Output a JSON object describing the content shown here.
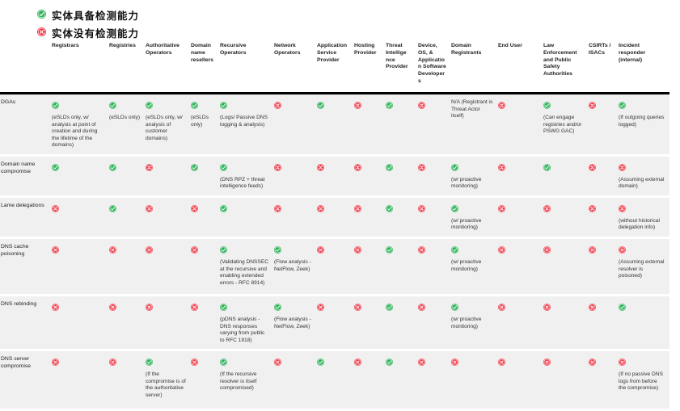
{
  "colors": {
    "check": "#2bb256",
    "cross": "#ee3342",
    "row_band": "#f0f0f1",
    "header_rule": "#000000"
  },
  "legend": {
    "items": [
      {
        "icon": "check-circle-icon",
        "label": "实体具备检测能力"
      },
      {
        "icon": "cross-circle-icon",
        "label": "实体没有检测能力"
      }
    ]
  },
  "table": {
    "columns": [
      "",
      "Registrars",
      "Registries",
      "Authoritative Operators",
      "Domain name resellers",
      "Recursive Operators",
      "Network Operators",
      "Application Service Provider",
      "Hosting Provider",
      "Threat Intellige nce Provider",
      "Device, OS, & Application Software Developers",
      "Domain Registrants",
      "End User",
      "Law Enforcement and Public Safety Authorities",
      "CSIRTs / ISACs",
      "Incident responder (internal)"
    ],
    "rows": [
      {
        "label": "DGAs",
        "cells": [
          {
            "state": "check",
            "note": "(eSLDs only, w/ analysis at point of creation and during the lifetime of the domains)"
          },
          {
            "state": "check",
            "note": "(eSLDs only)"
          },
          {
            "state": "check",
            "note": "(eSLDs only, w/ analysis of customer domains)"
          },
          {
            "state": "check",
            "note": "(eSLDs only)"
          },
          {
            "state": "check",
            "note": "(Logs/ Passive DNS logging & analysis)"
          },
          {
            "state": "cross",
            "note": ""
          },
          {
            "state": "check",
            "note": ""
          },
          {
            "state": "cross",
            "note": ""
          },
          {
            "state": "check",
            "note": ""
          },
          {
            "state": "cross",
            "note": ""
          },
          {
            "state": "none",
            "note": "N/A (Registrant is Threat Actor itself)"
          },
          {
            "state": "cross",
            "note": ""
          },
          {
            "state": "check",
            "note": "(Can engage registries and/or PSWG GAC)"
          },
          {
            "state": "cross",
            "note": ""
          },
          {
            "state": "check",
            "note": "(If outgoing queries logged)"
          }
        ]
      },
      {
        "label": "Domain name compromise",
        "cells": [
          {
            "state": "check",
            "note": ""
          },
          {
            "state": "check",
            "note": ""
          },
          {
            "state": "cross",
            "note": ""
          },
          {
            "state": "check",
            "note": ""
          },
          {
            "state": "check",
            "note": "(DNS RPZ + threat intelligence feeds)"
          },
          {
            "state": "cross",
            "note": ""
          },
          {
            "state": "cross",
            "note": ""
          },
          {
            "state": "cross",
            "note": ""
          },
          {
            "state": "check",
            "note": ""
          },
          {
            "state": "cross",
            "note": ""
          },
          {
            "state": "check",
            "note": "(w/ proactive monitoring)"
          },
          {
            "state": "cross",
            "note": ""
          },
          {
            "state": "check",
            "note": ""
          },
          {
            "state": "cross",
            "note": ""
          },
          {
            "state": "cross",
            "note": "(Assuming external domain)"
          }
        ]
      },
      {
        "label": "Lame delegations",
        "cells": [
          {
            "state": "cross",
            "note": ""
          },
          {
            "state": "check",
            "note": ""
          },
          {
            "state": "cross",
            "note": ""
          },
          {
            "state": "cross",
            "note": ""
          },
          {
            "state": "check",
            "note": ""
          },
          {
            "state": "cross",
            "note": ""
          },
          {
            "state": "cross",
            "note": ""
          },
          {
            "state": "cross",
            "note": ""
          },
          {
            "state": "check",
            "note": ""
          },
          {
            "state": "cross",
            "note": ""
          },
          {
            "state": "check",
            "note": "(w/ proactive monitoring)"
          },
          {
            "state": "cross",
            "note": ""
          },
          {
            "state": "cross",
            "note": ""
          },
          {
            "state": "cross",
            "note": ""
          },
          {
            "state": "cross",
            "note": "(without historical delegation info)"
          }
        ]
      },
      {
        "label": "DNS cache poisoning",
        "cells": [
          {
            "state": "cross",
            "note": ""
          },
          {
            "state": "cross",
            "note": ""
          },
          {
            "state": "cross",
            "note": ""
          },
          {
            "state": "cross",
            "note": ""
          },
          {
            "state": "check",
            "note": "(Validating DNSSEC at the recursive and enabling extended errors - RFC 8914)"
          },
          {
            "state": "check",
            "note": "(Flow analysis - NetFlow, Zeek)"
          },
          {
            "state": "cross",
            "note": ""
          },
          {
            "state": "cross",
            "note": ""
          },
          {
            "state": "check",
            "note": ""
          },
          {
            "state": "cross",
            "note": ""
          },
          {
            "state": "check",
            "note": "(w/ proactive monitoring)"
          },
          {
            "state": "cross",
            "note": ""
          },
          {
            "state": "cross",
            "note": ""
          },
          {
            "state": "cross",
            "note": ""
          },
          {
            "state": "cross",
            "note": "(Assuming external resolver is poisoned)"
          }
        ]
      },
      {
        "label": "DNS rebinding",
        "cells": [
          {
            "state": "cross",
            "note": ""
          },
          {
            "state": "cross",
            "note": ""
          },
          {
            "state": "cross",
            "note": ""
          },
          {
            "state": "cross",
            "note": ""
          },
          {
            "state": "check",
            "note": "(pDNS analysis - DNS responses varying from public to RFC 1918)"
          },
          {
            "state": "check",
            "note": "(Flow analysis - NetFlow, Zeek)"
          },
          {
            "state": "cross",
            "note": ""
          },
          {
            "state": "cross",
            "note": ""
          },
          {
            "state": "check",
            "note": ""
          },
          {
            "state": "cross",
            "note": ""
          },
          {
            "state": "check",
            "note": "(w/ proactive monitoring)"
          },
          {
            "state": "cross",
            "note": ""
          },
          {
            "state": "cross",
            "note": ""
          },
          {
            "state": "cross",
            "note": ""
          },
          {
            "state": "check",
            "note": ""
          }
        ]
      },
      {
        "label": "DNS server compromise",
        "cells": [
          {
            "state": "cross",
            "note": ""
          },
          {
            "state": "cross",
            "note": ""
          },
          {
            "state": "check",
            "note": "(If the compromise is of the authoritative server)"
          },
          {
            "state": "cross",
            "note": ""
          },
          {
            "state": "check",
            "note": "(If the recursive resolver is itself compromised)"
          },
          {
            "state": "cross",
            "note": ""
          },
          {
            "state": "check",
            "note": ""
          },
          {
            "state": "cross",
            "note": ""
          },
          {
            "state": "check",
            "note": ""
          },
          {
            "state": "cross",
            "note": ""
          },
          {
            "state": "cross",
            "note": ""
          },
          {
            "state": "cross",
            "note": ""
          },
          {
            "state": "cross",
            "note": ""
          },
          {
            "state": "cross",
            "note": ""
          },
          {
            "state": "cross",
            "note": "(If no passive DNS logs from before the compromise)"
          }
        ]
      }
    ]
  }
}
